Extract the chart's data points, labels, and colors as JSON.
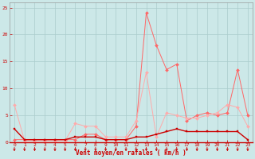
{
  "x": [
    0,
    1,
    2,
    3,
    4,
    5,
    6,
    7,
    8,
    9,
    10,
    11,
    12,
    13,
    14,
    15,
    16,
    17,
    18,
    19,
    20,
    21,
    22,
    23
  ],
  "line1": [
    2.5,
    0.5,
    0.5,
    0.5,
    0.5,
    0.5,
    1.0,
    1.0,
    1.0,
    0.5,
    0.5,
    0.5,
    1.0,
    1.0,
    1.5,
    2.0,
    2.5,
    2.0,
    2.0,
    2.0,
    2.0,
    2.0,
    2.0,
    0.5
  ],
  "line2": [
    7.0,
    0.3,
    0.3,
    0.3,
    0.3,
    0.3,
    3.5,
    3.0,
    3.0,
    1.0,
    1.0,
    1.0,
    4.0,
    13.0,
    1.0,
    5.5,
    5.0,
    4.5,
    4.5,
    5.0,
    5.5,
    7.0,
    6.5,
    3.0
  ],
  "line3": [
    0.5,
    0.5,
    0.5,
    0.5,
    0.5,
    0.5,
    0.5,
    1.5,
    1.5,
    0.5,
    0.5,
    0.5,
    3.0,
    24.0,
    18.0,
    13.5,
    14.5,
    4.0,
    5.0,
    5.5,
    5.0,
    5.5,
    13.5,
    5.0
  ],
  "bg_color": "#cce8e8",
  "grid_color": "#aacccc",
  "line1_color": "#cc0000",
  "line2_color": "#ffaaaa",
  "line3_color": "#ff6666",
  "xlabel": "Vent moyen/en rafales ( km/h )",
  "ylim": [
    0,
    26
  ],
  "xlim": [
    -0.5,
    23.5
  ],
  "yticks": [
    0,
    5,
    10,
    15,
    20,
    25
  ],
  "xticks": [
    0,
    1,
    2,
    3,
    4,
    5,
    6,
    7,
    8,
    9,
    10,
    11,
    12,
    13,
    14,
    15,
    16,
    17,
    18,
    19,
    20,
    21,
    22,
    23
  ]
}
